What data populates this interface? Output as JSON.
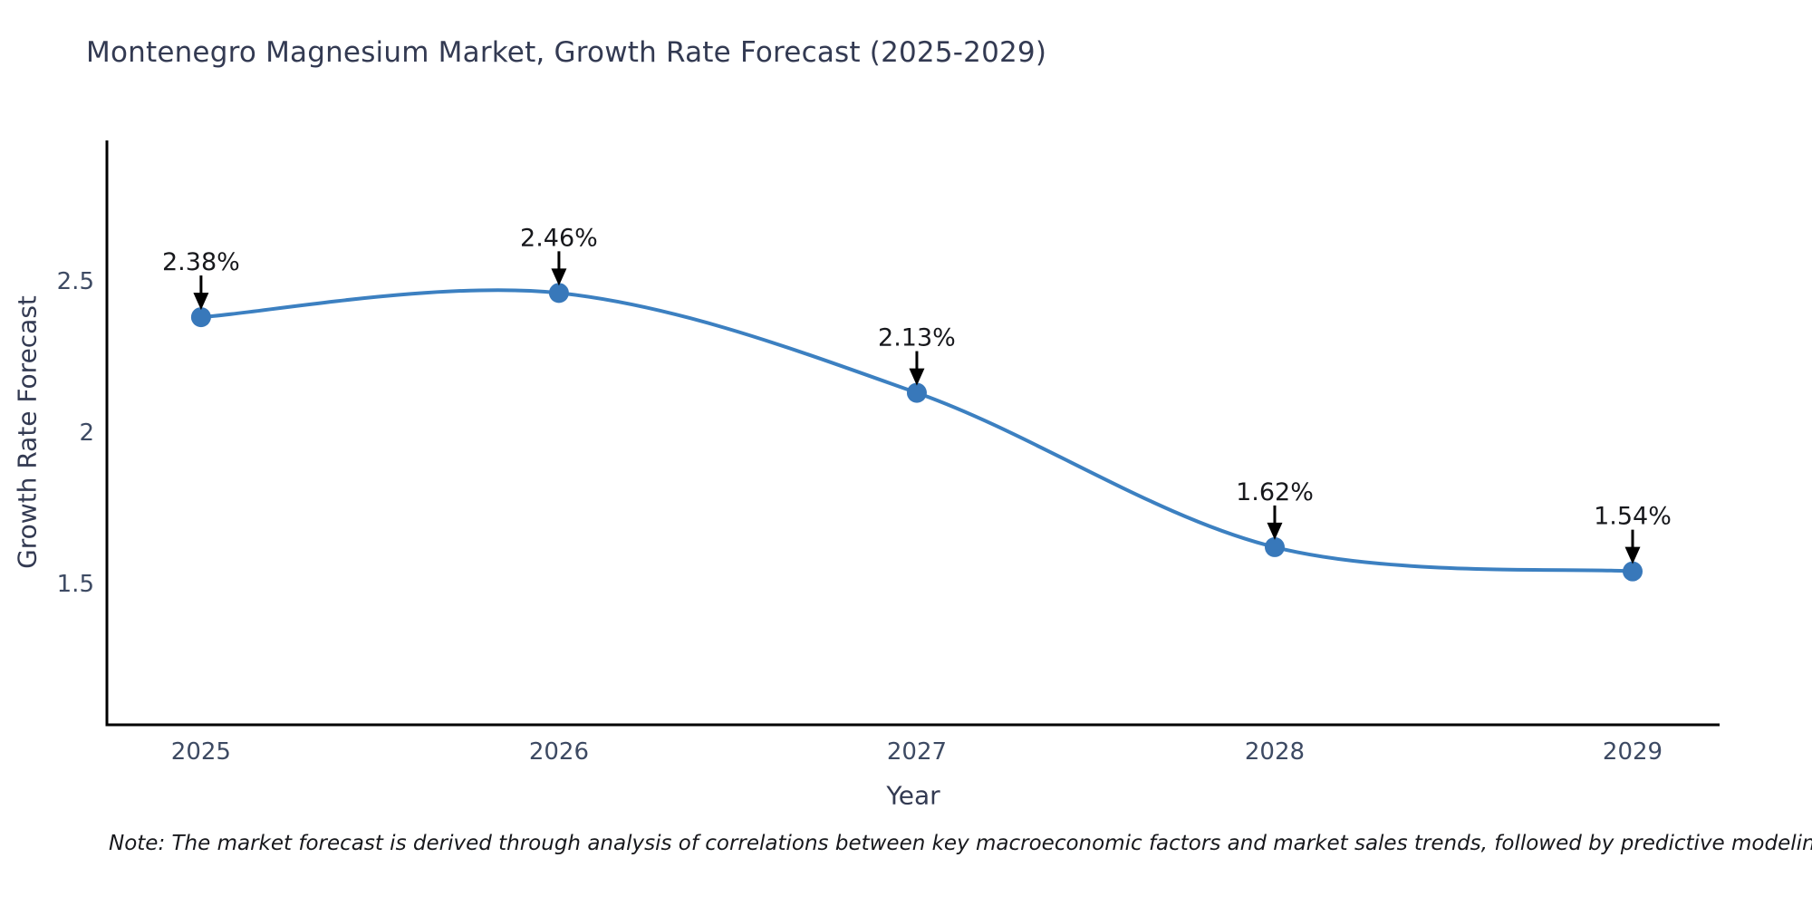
{
  "title": "Montenegro Magnesium Market, Growth Rate Forecast (2025-2029)",
  "note": "Note: The market forecast is derived through analysis of correlations between key macroeconomic factors and market sales trends, followed by predictive modeling to project future sales",
  "colors": {
    "background": "#ffffff",
    "line": "#3c80c1",
    "marker": "#3878ba",
    "axis_line": "#000000",
    "title_text": "#333a52",
    "tick_text": "#3d4a63",
    "annotation_text": "#17181c"
  },
  "chart_data": {
    "type": "line",
    "line_shape": "spline",
    "title": "Montenegro Magnesium Market, Growth Rate Forecast (2025-2029)",
    "xlabel": "Year",
    "ylabel": "Growth Rate Forecast",
    "x": [
      2025,
      2026,
      2027,
      2028,
      2029
    ],
    "y": [
      2.38,
      2.46,
      2.13,
      1.62,
      1.54
    ],
    "point_labels": [
      "2.38%",
      "2.46%",
      "2.13%",
      "1.62%",
      "1.54%"
    ],
    "xtick_labels": [
      "2025",
      "2026",
      "2027",
      "2028",
      "2029"
    ],
    "yticks": [
      1.5,
      2,
      2.5
    ],
    "ytick_labels": [
      "1.5",
      "2",
      "2.5"
    ],
    "xlim": [
      2024.737,
      2029.243
    ],
    "ylim": [
      1.033,
      2.964
    ],
    "grid": false,
    "legend": "none",
    "marker_radius": 11,
    "line_width": 4
  }
}
